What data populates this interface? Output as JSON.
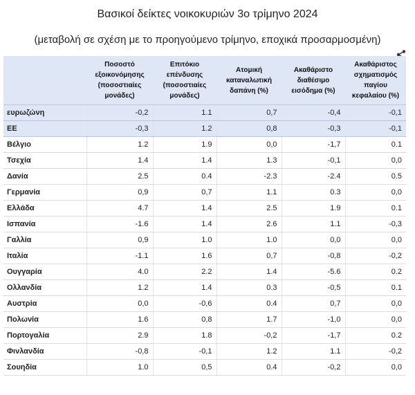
{
  "title": "Βασικοί δείκτες νοικοκυριών 3ο τρίμηνο 2024",
  "subtitle": "(μεταβολή σε σχέση με το προηγούμενο τρίμηνο, εποχικά προσαρμοσμένη)",
  "share_icon": "share-icon",
  "colors": {
    "header_bg": "#dfe7f6",
    "aggregate_row_bg": "#dfe7f6"
  },
  "table": {
    "headers": [
      "Ποσοστό εξοικονόμησης (ποσοστιαίες μονάδες)",
      "Επιτόκιο επένδυσης (ποσοστιαίες μονάδες)",
      "Ατομική καταναλωτική δαπάνη (%)",
      "Ακαθάριστο διαθέσιμο εισόδημα (%)",
      "Ακαθάριστος σχηματισμός παγίου κεφαλαίου (%)"
    ],
    "rows": [
      {
        "country": "ευρωζώνη",
        "values": [
          "-0,2",
          "1.1",
          "0,7",
          "-0,4",
          "-0,1"
        ],
        "aggregate": true
      },
      {
        "country": "ΕΕ",
        "values": [
          "-0,3",
          "1.2",
          "0,8",
          "-0,3",
          "-0,1"
        ],
        "aggregate": true
      },
      {
        "country": "Βέλγιο",
        "values": [
          "1.2",
          "1.9",
          "0,0",
          "-1,7",
          "0.1"
        ]
      },
      {
        "country": "Τσεχία",
        "values": [
          "1.4",
          "1.4",
          "1.3",
          "-0,1",
          "0,0"
        ]
      },
      {
        "country": "Δανία",
        "values": [
          "2.5",
          "0.4",
          "-2.3",
          "-2.4",
          "0.5"
        ]
      },
      {
        "country": "Γερμανία",
        "values": [
          "0,9",
          "0,7",
          "1.1",
          "0.3",
          "0,0"
        ]
      },
      {
        "country": "Ελλάδα",
        "values": [
          "4.7",
          "1.4",
          "2.5",
          "1.9",
          "0.1"
        ]
      },
      {
        "country": "Ισπανία",
        "values": [
          "-1.6",
          "1.4",
          "2.6",
          "1.1",
          "-0,3"
        ]
      },
      {
        "country": "Γαλλία",
        "values": [
          "0,9",
          "1.0",
          "1.0",
          "0,0",
          "0,0"
        ]
      },
      {
        "country": "Ιταλία",
        "values": [
          "-1.1",
          "1.6",
          "0,7",
          "-0,8",
          "-0,2"
        ]
      },
      {
        "country": "Ουγγαρία",
        "values": [
          "4.0",
          "2.2",
          "1.4",
          "-5.6",
          "0.2"
        ]
      },
      {
        "country": "Ολλανδία",
        "values": [
          "1.2",
          "1.4",
          "0.3",
          "-0,5",
          "0.1"
        ]
      },
      {
        "country": "Αυστρία",
        "values": [
          "0,0",
          "-0,6",
          "0.4",
          "0,7",
          "0,0"
        ]
      },
      {
        "country": "Πολωνία",
        "values": [
          "1.6",
          "0,8",
          "1.7",
          "-1,0",
          "0,0"
        ]
      },
      {
        "country": "Πορτογαλία",
        "values": [
          "2.9",
          "1.8",
          "-0,2",
          "-1,7",
          "0.2"
        ]
      },
      {
        "country": "Φινλανδία",
        "values": [
          "-0,8",
          "-0,1",
          "1.2",
          "1.1",
          "-0,2"
        ]
      },
      {
        "country": "Σουηδία",
        "values": [
          "1.0",
          "0,5",
          "0.4",
          "-0,2",
          "0,0"
        ]
      }
    ]
  }
}
